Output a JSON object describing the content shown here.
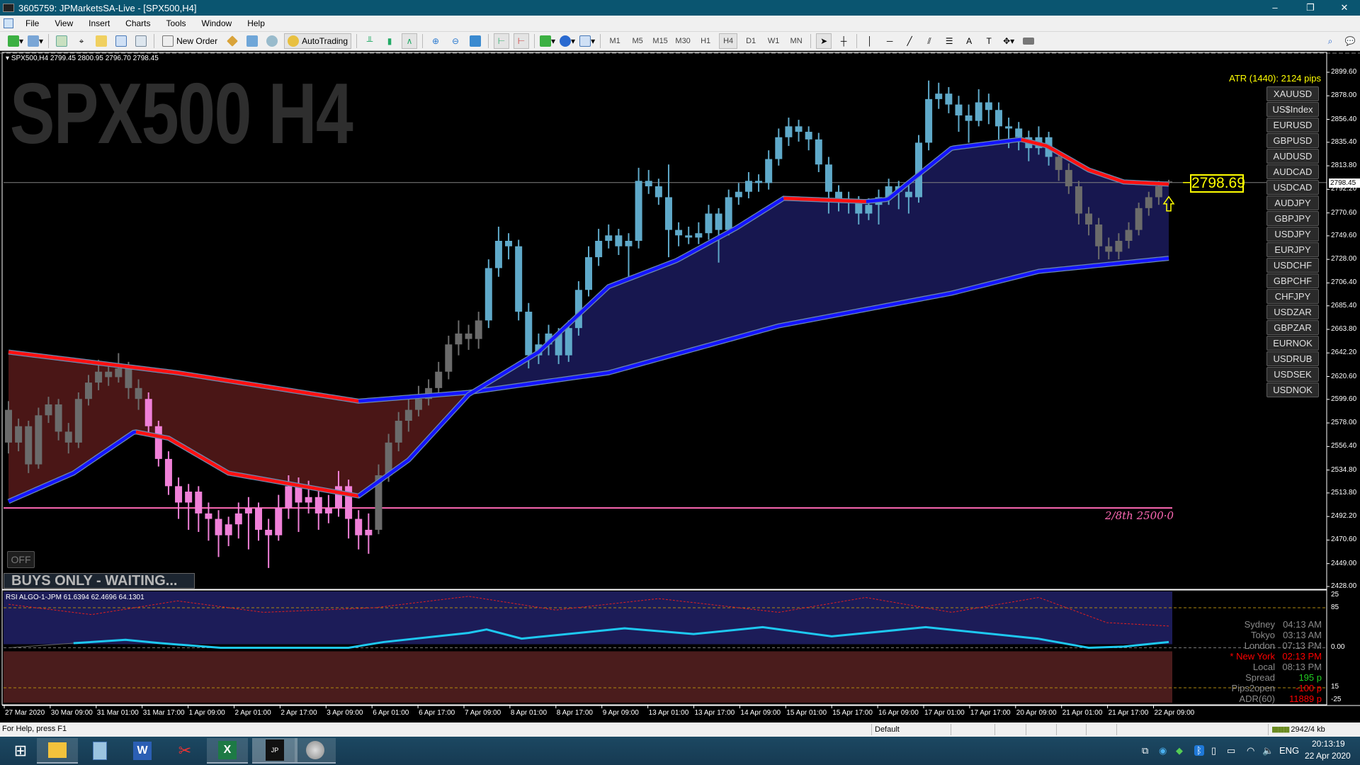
{
  "window": {
    "title": "3605759: JPMarketsSA-Live - [SPX500,H4]",
    "controls": [
      "–",
      "❐",
      "✕"
    ]
  },
  "menu": [
    "File",
    "View",
    "Insert",
    "Charts",
    "Tools",
    "Window",
    "Help"
  ],
  "toolbar": {
    "new_order": "New Order",
    "autotrading": "AutoTrading",
    "timeframes": [
      "M1",
      "M5",
      "M15",
      "M30",
      "H1",
      "H4",
      "D1",
      "W1",
      "MN"
    ],
    "active_timeframe": "H4"
  },
  "chart": {
    "watermark": "SPX500 H4",
    "info_line": "SPX500,H4  2799.45 2800.95 2796.70 2798.45",
    "atr": "ATR (1440): 2124 pips",
    "symbols": [
      "XAUUSD",
      "US$Index",
      "EURUSD",
      "GBPUSD",
      "AUDUSD",
      "AUDCAD",
      "USDCAD",
      "AUDJPY",
      "GBPJPY",
      "USDJPY",
      "EURJPY",
      "USDCHF",
      "GBPCHF",
      "CHFJPY",
      "USDZAR",
      "GBPZAR",
      "EURNOK",
      "USDRUB",
      "USDSEK",
      "USDNOK"
    ],
    "price_box": "2798.69",
    "current_price": "2798.45",
    "fib_label": "2/8th  2500·0",
    "off_button": "OFF",
    "status_banner": "BUYS ONLY - WAITING...",
    "rsi_header": "RSI  ALGO-1-JPM   61.6394 62.4696 64.1301",
    "rsi_axis_labels": [
      "25",
      "85",
      "0.00",
      "15",
      "-25"
    ],
    "sessions": [
      {
        "label": "Sydney",
        "value": "04:13 AM",
        "color": "#8a8a8a"
      },
      {
        "label": "Tokyo",
        "value": "03:13 AM",
        "color": "#8a8a8a"
      },
      {
        "label": "London",
        "value": "07:13 PM",
        "color": "#8a8a8a"
      },
      {
        "label": "* New York",
        "value": "02:13 PM",
        "color": "#ff0000"
      },
      {
        "label": "Local",
        "value": "08:13 PM",
        "color": "#8a8a8a"
      },
      {
        "label": "Spread",
        "value": "195 p",
        "color": "#8a8a8a",
        "value_color": "#22cc22"
      },
      {
        "label": "Pips2open",
        "value": "-100 p",
        "color": "#8a8a8a",
        "value_color": "#ff0000"
      },
      {
        "label": "ADR(60)",
        "value": "11889 p",
        "color": "#8a8a8a",
        "value_color": "#ff0000"
      }
    ]
  },
  "chart_data": {
    "type": "candlestick",
    "symbol": "SPX500",
    "timeframe": "H4",
    "ylim": [
      2428.0,
      2899.6
    ],
    "y_ticks": [
      "2899.60",
      "2878.00",
      "2856.40",
      "2835.40",
      "2813.80",
      "2792.20",
      "2770.60",
      "2749.60",
      "2728.00",
      "2706.40",
      "2685.40",
      "2663.80",
      "2642.20",
      "2620.60",
      "2599.60",
      "2578.00",
      "2556.40",
      "2534.80",
      "2513.80",
      "2492.20",
      "2470.60",
      "2449.00",
      "2428.00"
    ],
    "x_ticks": [
      "27 Mar 2020",
      "30 Mar 09:00",
      "31 Mar 01:00",
      "31 Mar 17:00",
      "1 Apr 09:00",
      "2 Apr 01:00",
      "2 Apr 17:00",
      "3 Apr 09:00",
      "6 Apr 01:00",
      "6 Apr 17:00",
      "7 Apr 09:00",
      "8 Apr 01:00",
      "8 Apr 17:00",
      "9 Apr 09:00",
      "13 Apr 01:00",
      "13 Apr 17:00",
      "14 Apr 09:00",
      "15 Apr 01:00",
      "15 Apr 17:00",
      "16 Apr 09:00",
      "17 Apr 01:00",
      "17 Apr 17:00",
      "20 Apr 09:00",
      "21 Apr 01:00",
      "21 Apr 17:00",
      "22 Apr 09:00"
    ],
    "ohlc": [
      [
        2590,
        2598,
        2550,
        2560
      ],
      [
        2560,
        2582,
        2552,
        2575
      ],
      [
        2575,
        2580,
        2532,
        2540
      ],
      [
        2540,
        2592,
        2536,
        2585
      ],
      [
        2585,
        2602,
        2578,
        2595
      ],
      [
        2595,
        2600,
        2562,
        2570
      ],
      [
        2570,
        2578,
        2550,
        2560
      ],
      [
        2560,
        2606,
        2555,
        2600
      ],
      [
        2600,
        2622,
        2594,
        2615
      ],
      [
        2615,
        2636,
        2608,
        2625
      ],
      [
        2625,
        2632,
        2612,
        2620
      ],
      [
        2620,
        2642,
        2615,
        2628
      ],
      [
        2628,
        2634,
        2600,
        2610
      ],
      [
        2610,
        2618,
        2590,
        2600
      ],
      [
        2600,
        2606,
        2568,
        2575
      ],
      [
        2575,
        2580,
        2538,
        2545
      ],
      [
        2545,
        2552,
        2512,
        2520
      ],
      [
        2520,
        2528,
        2490,
        2505
      ],
      [
        2505,
        2522,
        2480,
        2515
      ],
      [
        2515,
        2520,
        2478,
        2495
      ],
      [
        2495,
        2505,
        2470,
        2490
      ],
      [
        2490,
        2498,
        2455,
        2475
      ],
      [
        2475,
        2492,
        2465,
        2485
      ],
      [
        2485,
        2505,
        2472,
        2495
      ],
      [
        2495,
        2510,
        2462,
        2500
      ],
      [
        2500,
        2505,
        2470,
        2480
      ],
      [
        2480,
        2490,
        2445,
        2475
      ],
      [
        2475,
        2512,
        2470,
        2500
      ],
      [
        2500,
        2530,
        2490,
        2520
      ],
      [
        2520,
        2528,
        2478,
        2505
      ],
      [
        2505,
        2525,
        2495,
        2510
      ],
      [
        2510,
        2518,
        2480,
        2495
      ],
      [
        2495,
        2512,
        2486,
        2500
      ],
      [
        2500,
        2534,
        2492,
        2520
      ],
      [
        2520,
        2526,
        2472,
        2490
      ],
      [
        2490,
        2498,
        2462,
        2475
      ],
      [
        2475,
        2495,
        2458,
        2480
      ],
      [
        2480,
        2540,
        2476,
        2530
      ],
      [
        2530,
        2568,
        2524,
        2560
      ],
      [
        2560,
        2588,
        2552,
        2580
      ],
      [
        2580,
        2600,
        2570,
        2590
      ],
      [
        2590,
        2612,
        2584,
        2600
      ],
      [
        2600,
        2618,
        2594,
        2610
      ],
      [
        2610,
        2634,
        2604,
        2625
      ],
      [
        2625,
        2658,
        2618,
        2650
      ],
      [
        2650,
        2672,
        2640,
        2660
      ],
      [
        2660,
        2668,
        2645,
        2655
      ],
      [
        2655,
        2680,
        2646,
        2672
      ],
      [
        2672,
        2728,
        2665,
        2720
      ],
      [
        2720,
        2758,
        2712,
        2745
      ],
      [
        2745,
        2752,
        2728,
        2740
      ],
      [
        2740,
        2746,
        2672,
        2680
      ],
      [
        2680,
        2688,
        2628,
        2640
      ],
      [
        2640,
        2660,
        2632,
        2650
      ],
      [
        2650,
        2668,
        2640,
        2660
      ],
      [
        2660,
        2665,
        2632,
        2640
      ],
      [
        2640,
        2672,
        2634,
        2665
      ],
      [
        2665,
        2708,
        2658,
        2700
      ],
      [
        2700,
        2740,
        2694,
        2730
      ],
      [
        2730,
        2756,
        2722,
        2745
      ],
      [
        2745,
        2760,
        2738,
        2750
      ],
      [
        2750,
        2756,
        2732,
        2740
      ],
      [
        2740,
        2752,
        2712,
        2745
      ],
      [
        2745,
        2812,
        2738,
        2800
      ],
      [
        2800,
        2810,
        2788,
        2795
      ],
      [
        2795,
        2802,
        2778,
        2785
      ],
      [
        2785,
        2815,
        2730,
        2755
      ],
      [
        2755,
        2762,
        2740,
        2750
      ],
      [
        2750,
        2758,
        2742,
        2748
      ],
      [
        2748,
        2762,
        2742,
        2752
      ],
      [
        2752,
        2778,
        2746,
        2770
      ],
      [
        2770,
        2775,
        2725,
        2755
      ],
      [
        2755,
        2792,
        2750,
        2785
      ],
      [
        2785,
        2798,
        2778,
        2790
      ],
      [
        2790,
        2808,
        2784,
        2800
      ],
      [
        2800,
        2806,
        2790,
        2798
      ],
      [
        2798,
        2828,
        2792,
        2820
      ],
      [
        2820,
        2848,
        2814,
        2840
      ],
      [
        2840,
        2858,
        2832,
        2850
      ],
      [
        2850,
        2856,
        2836,
        2845
      ],
      [
        2845,
        2850,
        2828,
        2838
      ],
      [
        2838,
        2844,
        2808,
        2815
      ],
      [
        2815,
        2822,
        2770,
        2790
      ],
      [
        2790,
        2796,
        2772,
        2782
      ],
      [
        2782,
        2790,
        2770,
        2780
      ],
      [
        2780,
        2786,
        2760,
        2770
      ],
      [
        2770,
        2784,
        2764,
        2778
      ],
      [
        2778,
        2792,
        2760,
        2785
      ],
      [
        2785,
        2802,
        2778,
        2795
      ],
      [
        2795,
        2800,
        2774,
        2790
      ],
      [
        2790,
        2796,
        2770,
        2785
      ],
      [
        2785,
        2842,
        2780,
        2835
      ],
      [
        2835,
        2892,
        2828,
        2875
      ],
      [
        2875,
        2890,
        2866,
        2880
      ],
      [
        2880,
        2886,
        2862,
        2870
      ],
      [
        2870,
        2878,
        2845,
        2860
      ],
      [
        2860,
        2870,
        2835,
        2855
      ],
      [
        2855,
        2884,
        2850,
        2872
      ],
      [
        2872,
        2880,
        2852,
        2865
      ],
      [
        2865,
        2872,
        2838,
        2850
      ],
      [
        2850,
        2858,
        2830,
        2848
      ],
      [
        2848,
        2854,
        2828,
        2840
      ],
      [
        2840,
        2846,
        2818,
        2830
      ],
      [
        2830,
        2850,
        2824,
        2840
      ],
      [
        2840,
        2845,
        2814,
        2822
      ],
      [
        2822,
        2828,
        2800,
        2810
      ],
      [
        2810,
        2816,
        2788,
        2795
      ],
      [
        2795,
        2800,
        2760,
        2770
      ],
      [
        2770,
        2776,
        2750,
        2760
      ],
      [
        2760,
        2766,
        2728,
        2740
      ],
      [
        2740,
        2748,
        2728,
        2735
      ],
      [
        2735,
        2752,
        2728,
        2745
      ],
      [
        2745,
        2762,
        2738,
        2755
      ],
      [
        2755,
        2780,
        2750,
        2775
      ],
      [
        2775,
        2790,
        2768,
        2785
      ],
      [
        2785,
        2800,
        2778,
        2795
      ],
      [
        2799.45,
        2800.95,
        2796.7,
        2798.45
      ]
    ],
    "candle_colors": [
      {
        "from": 0,
        "to": 13,
        "color": "#6b6b6b"
      },
      {
        "from": 14,
        "to": 36,
        "color": "#f080d8"
      },
      {
        "from": 37,
        "to": 47,
        "color": "#6b6b6b"
      },
      {
        "from": 48,
        "to": 104,
        "color": "#5fa9c9"
      },
      {
        "from": 105,
        "to": 116,
        "color": "#6b6b6b"
      }
    ],
    "ma_fast": [
      [
        0,
        2506
      ],
      [
        6.5,
        2532
      ],
      [
        12.6,
        2570
      ],
      [
        16,
        2564
      ],
      [
        22,
        2532
      ],
      [
        35,
        2511
      ],
      [
        40,
        2544
      ],
      [
        46,
        2604
      ],
      [
        53,
        2643
      ],
      [
        60,
        2703
      ],
      [
        66.8,
        2727
      ],
      [
        72.8,
        2757
      ],
      [
        77.5,
        2784
      ],
      [
        85.7,
        2781
      ],
      [
        87.9,
        2783
      ],
      [
        94.3,
        2830
      ],
      [
        101.2,
        2838
      ],
      [
        103.8,
        2832
      ],
      [
        108,
        2810
      ],
      [
        111.5,
        2799
      ],
      [
        116,
        2797
      ]
    ],
    "ma_slow": [
      [
        0,
        2643
      ],
      [
        16.9,
        2624
      ],
      [
        35,
        2598
      ],
      [
        46,
        2606
      ],
      [
        60,
        2624
      ],
      [
        77,
        2667
      ],
      [
        94.3,
        2697
      ],
      [
        103,
        2717
      ],
      [
        116,
        2729
      ]
    ],
    "ma_colors": {
      "rising": "#1414ff",
      "falling": "#ff1010",
      "outline": "#6a88b0"
    },
    "fill_colors": {
      "bullish": "#17174f",
      "bearish": "#4a1616"
    },
    "hline": {
      "price": 2500.0,
      "color": "#ff69b4"
    },
    "current_line_color": "#808080",
    "rsi": {
      "levels": [
        85,
        50,
        15
      ],
      "line": [
        [
          0,
          50
        ],
        [
          6.5,
          54
        ],
        [
          11.7,
          57
        ],
        [
          15.2,
          54
        ],
        [
          21.2,
          50
        ],
        [
          34,
          50
        ],
        [
          37.5,
          55
        ],
        [
          46,
          63
        ],
        [
          47.8,
          66
        ],
        [
          51.3,
          58
        ],
        [
          61.6,
          67
        ],
        [
          68.5,
          62
        ],
        [
          75.4,
          68
        ],
        [
          82.3,
          60
        ],
        [
          91.7,
          68
        ],
        [
          102.9,
          58
        ],
        [
          108,
          50
        ],
        [
          111.5,
          51
        ],
        [
          116,
          55
        ]
      ],
      "signal": [
        [
          0,
          88
        ],
        [
          8.3,
          79
        ],
        [
          16.9,
          91
        ],
        [
          25.5,
          81
        ],
        [
          36.6,
          85
        ],
        [
          46,
          95
        ],
        [
          54.7,
          83
        ],
        [
          65,
          93
        ],
        [
          77,
          81
        ],
        [
          85.7,
          94
        ],
        [
          94.3,
          81
        ],
        [
          103,
          94
        ],
        [
          109.8,
          72
        ],
        [
          116,
          69
        ]
      ],
      "line_color": "#1ec8f0",
      "signal_color": "#e02020",
      "upper_fill": "#1c1c58",
      "lower_fill": "#4a1c1c",
      "level_color": "#b08a10"
    }
  },
  "statusbar": {
    "help": "For Help, press F1",
    "profile": "Default",
    "traffic": "2942/4 kb"
  },
  "taskbar": {
    "lang": "ENG",
    "time": "20:13:19",
    "date": "22 Apr 2020"
  }
}
